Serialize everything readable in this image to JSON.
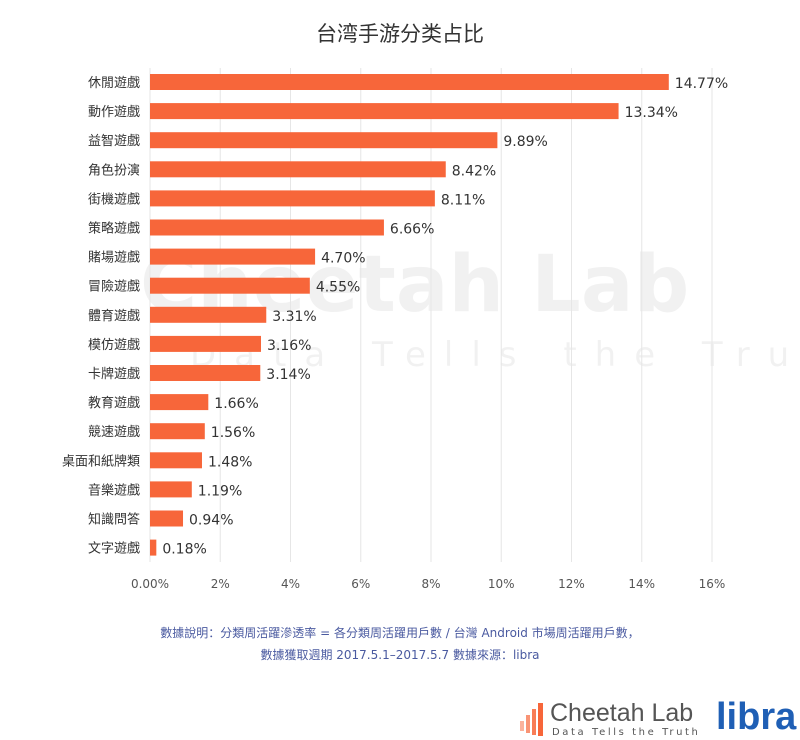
{
  "chart_data": {
    "type": "bar",
    "orientation": "horizontal",
    "title": "台湾手游分类占比",
    "categories": [
      "休閒遊戲",
      "動作遊戲",
      "益智遊戲",
      "角色扮演",
      "街機遊戲",
      "策略遊戲",
      "賭場遊戲",
      "冒險遊戲",
      "體育遊戲",
      "模仿遊戲",
      "卡牌遊戲",
      "教育遊戲",
      "競速遊戲",
      "桌面和紙牌類",
      "音樂遊戲",
      "知識問答",
      "文字遊戲"
    ],
    "values": [
      14.77,
      13.34,
      9.89,
      8.42,
      8.11,
      6.66,
      4.7,
      4.55,
      3.31,
      3.16,
      3.14,
      1.66,
      1.56,
      1.48,
      1.19,
      0.94,
      0.18
    ],
    "value_labels": [
      "14.77%",
      "13.34%",
      "9.89%",
      "8.42%",
      "8.11%",
      "6.66%",
      "4.70%",
      "4.55%",
      "3.31%",
      "3.16%",
      "3.14%",
      "1.66%",
      "1.56%",
      "1.48%",
      "1.19%",
      "0.94%",
      "0.18%"
    ],
    "xlim": [
      0,
      16
    ],
    "x_ticks": [
      "0.00%",
      "2%",
      "4%",
      "6%",
      "8%",
      "10%",
      "12%",
      "14%",
      "16%"
    ],
    "grid": true,
    "bar_color": "#f7663a"
  },
  "note": {
    "line1": "數據說明：分類周活躍滲透率 = 各分類周活躍用戶數 / 台灣 Android 市場周活躍用戶數，",
    "line2": "數據獲取週期 2017.5.1–2017.5.7 數據來源：libra"
  },
  "watermark": {
    "name": "Cheetah Lab",
    "tagline": "Data Tells the Truth"
  },
  "logos": {
    "cheetah": "Cheetah Lab",
    "cheetah_tagline": "Data Tells the Truth",
    "libra": "libra"
  }
}
